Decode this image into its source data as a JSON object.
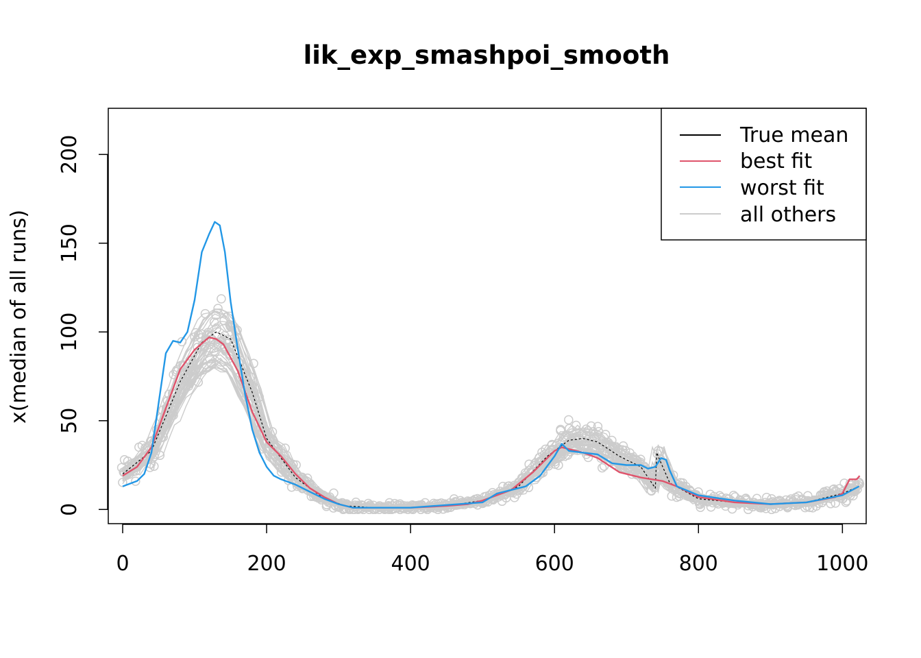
{
  "chart_data": {
    "type": "line",
    "title": "lik_exp_smashpoi_smooth",
    "xlabel": "",
    "ylabel": "x(median of all runs)",
    "xlim": [
      -20,
      1033
    ],
    "ylim": [
      -8,
      226
    ],
    "x_ticks": [
      0,
      200,
      400,
      600,
      800,
      1000
    ],
    "x_tick_labels": [
      "0",
      "200",
      "400",
      "600",
      "800",
      "1000"
    ],
    "y_ticks": [
      0,
      50,
      100,
      150,
      200
    ],
    "y_tick_labels": [
      "0",
      "50",
      "100",
      "150",
      "200"
    ],
    "legend": {
      "position": "top-right",
      "entries": [
        {
          "label": "True mean",
          "color": "#000000"
        },
        {
          "label": "best fit",
          "color": "#DF536B"
        },
        {
          "label": "worst fit",
          "color": "#2297E6"
        },
        {
          "label": "all others",
          "color": "#CCCCCC"
        }
      ]
    },
    "series": [
      {
        "name": "True mean",
        "color": "#000000",
        "style": "dashed",
        "x": [
          0,
          40,
          80,
          110,
          130,
          150,
          180,
          200,
          240,
          280,
          310,
          350,
          400,
          450,
          500,
          550,
          590,
          620,
          640,
          660,
          690,
          720,
          740,
          742,
          746,
          760,
          800,
          850,
          900,
          950,
          1000,
          1023
        ],
        "y": [
          20,
          33,
          72,
          94,
          100,
          96,
          66,
          40,
          18,
          6,
          2,
          1,
          1,
          2,
          5,
          13,
          30,
          39,
          40,
          38,
          30,
          24,
          12,
          32,
          28,
          15,
          6,
          4,
          3,
          4,
          9,
          13
        ]
      },
      {
        "name": "best fit",
        "color": "#DF536B",
        "x": [
          0,
          20,
          40,
          60,
          80,
          100,
          120,
          130,
          140,
          160,
          180,
          200,
          220,
          240,
          260,
          280,
          300,
          320,
          360,
          400,
          450,
          480,
          500,
          540,
          570,
          600,
          610,
          620,
          640,
          660,
          690,
          720,
          750,
          770,
          800,
          850,
          900,
          950,
          990,
          1000,
          1010,
          1020,
          1024
        ],
        "y": [
          19,
          24,
          35,
          57,
          79,
          90,
          97,
          96,
          93,
          78,
          55,
          38,
          30,
          20,
          12,
          7,
          3,
          1,
          1,
          1,
          2,
          3,
          5,
          11,
          21,
          33,
          35,
          34,
          32,
          29,
          21,
          18,
          16,
          13,
          7,
          4,
          3,
          4,
          7,
          9,
          17,
          17,
          19
        ]
      },
      {
        "name": "worst fit",
        "color": "#2297E6",
        "x": [
          0,
          20,
          30,
          40,
          50,
          60,
          70,
          80,
          90,
          100,
          110,
          120,
          128,
          135,
          142,
          150,
          160,
          170,
          180,
          190,
          200,
          210,
          220,
          240,
          260,
          280,
          300,
          320,
          400,
          500,
          520,
          540,
          560,
          580,
          600,
          610,
          620,
          640,
          660,
          680,
          700,
          720,
          730,
          740,
          748,
          755,
          760,
          770,
          800,
          850,
          900,
          950,
          1000,
          1023
        ],
        "y": [
          13,
          16,
          20,
          32,
          60,
          88,
          95,
          94,
          100,
          118,
          145,
          155,
          162,
          160,
          145,
          117,
          90,
          65,
          45,
          32,
          24,
          19,
          17,
          14,
          10,
          6,
          3,
          1,
          1,
          4,
          9,
          11,
          13,
          19,
          30,
          37,
          33,
          32,
          31,
          26,
          25,
          25,
          23,
          24,
          29,
          28,
          22,
          13,
          8,
          5,
          3,
          4,
          8,
          13
        ]
      }
    ]
  }
}
